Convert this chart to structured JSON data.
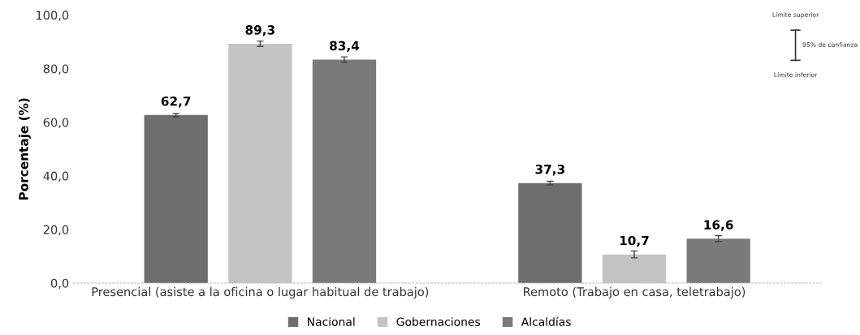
{
  "chart_data": {
    "type": "bar",
    "ylabel": "Porcentaje (%)",
    "categories": [
      "Presencial (asiste a la oficina o lugar habitual de trabajo)",
      "Remoto (Trabajo en casa, teletrabajo)"
    ],
    "series": [
      {
        "name": "Nacional",
        "color": "#6e6e6e",
        "values": [
          62.7,
          37.3
        ],
        "errors": [
          0.6,
          0.7
        ],
        "value_labels": [
          "62,7",
          "37,3"
        ]
      },
      {
        "name": "Gobernaciones",
        "color": "#c4c4c4",
        "values": [
          89.3,
          10.7
        ],
        "errors": [
          1.0,
          1.3
        ],
        "value_labels": [
          "89,3",
          "10,7"
        ]
      },
      {
        "name": "Alcaldías",
        "color": "#7a7a7a",
        "values": [
          83.4,
          16.6
        ],
        "errors": [
          1.0,
          1.1
        ],
        "value_labels": [
          "83,4",
          "16,6"
        ]
      }
    ],
    "ylim": [
      0,
      100
    ],
    "yticks": [
      {
        "value": 0,
        "label": "0,0"
      },
      {
        "value": 20,
        "label": "20,0"
      },
      {
        "value": 40,
        "label": "40,0"
      },
      {
        "value": 60,
        "label": "60,0"
      },
      {
        "value": 80,
        "label": "80,0"
      },
      {
        "value": 100,
        "label": "100,0"
      }
    ],
    "legend": "bottom",
    "grid": false,
    "annotations": [
      "Límite superior",
      "95% de confianza",
      "Límite inferior"
    ]
  }
}
